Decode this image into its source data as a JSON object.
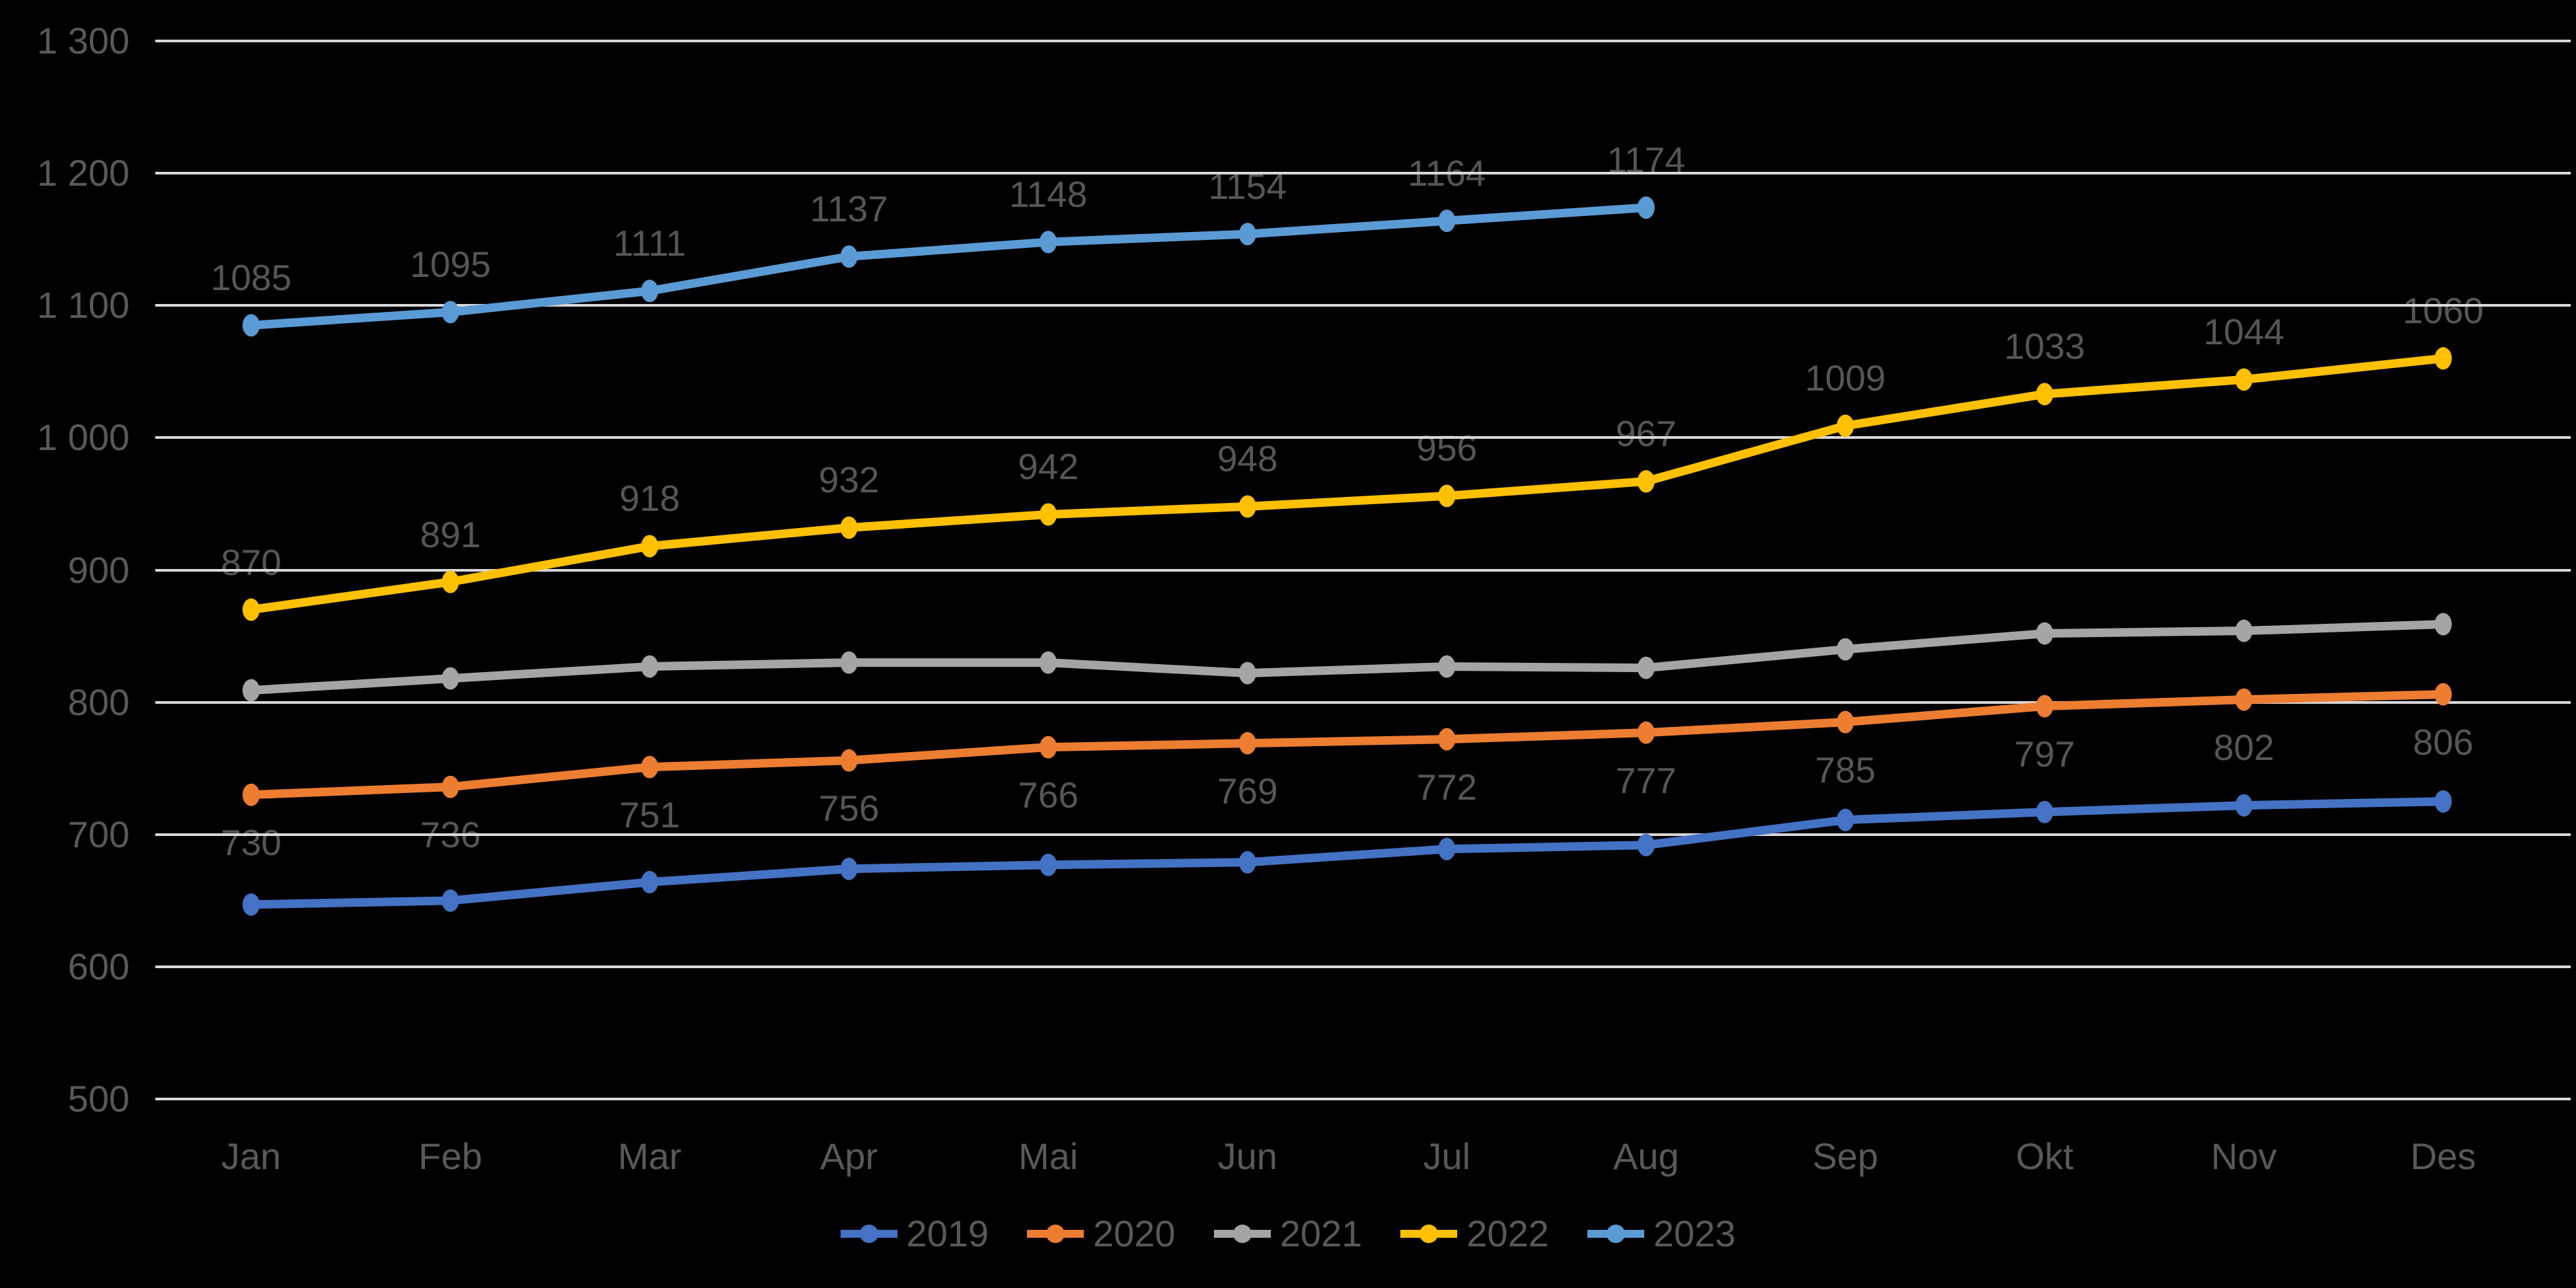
{
  "chart_data": {
    "type": "line",
    "title": "",
    "categories": [
      "Jan",
      "Feb",
      "Mar",
      "Apr",
      "Mai",
      "Jun",
      "Jul",
      "Aug",
      "Sep",
      "Okt",
      "Nov",
      "Des"
    ],
    "y_axis": {
      "min": 500,
      "max": 1300,
      "step": 100,
      "ticks": [
        {
          "value": 1300,
          "label": "1 300"
        },
        {
          "value": 1200,
          "label": "1 200"
        },
        {
          "value": 1100,
          "label": "1 100"
        },
        {
          "value": 1000,
          "label": "1 000"
        },
        {
          "value": 900,
          "label": "900"
        },
        {
          "value": 800,
          "label": "800"
        },
        {
          "value": 700,
          "label": "700"
        },
        {
          "value": 600,
          "label": "600"
        },
        {
          "value": 500,
          "label": "500"
        }
      ]
    },
    "grid": true,
    "legend_position": "bottom",
    "series": [
      {
        "name": "2019",
        "color": "#4472C4",
        "data_labels": "none",
        "values": [
          647,
          650,
          664,
          674,
          677,
          679,
          689,
          692,
          711,
          717,
          722,
          725
        ]
      },
      {
        "name": "2020",
        "color": "#ED7D31",
        "data_labels": "below",
        "values": [
          730,
          736,
          751,
          756,
          766,
          769,
          772,
          777,
          785,
          797,
          802,
          806
        ]
      },
      {
        "name": "2021",
        "color": "#A5A5A5",
        "data_labels": "none",
        "values": [
          809,
          818,
          827,
          830,
          830,
          822,
          827,
          826,
          840,
          852,
          854,
          859
        ]
      },
      {
        "name": "2022",
        "color": "#FFC000",
        "data_labels": "above",
        "values": [
          870,
          891,
          918,
          932,
          942,
          948,
          956,
          967,
          1009,
          1033,
          1044,
          1060
        ]
      },
      {
        "name": "2023",
        "color": "#5B9BD5",
        "data_labels": "above",
        "values": [
          1085,
          1095,
          1111,
          1137,
          1148,
          1154,
          1164,
          1174,
          null,
          null,
          null,
          null
        ]
      }
    ],
    "colors": {
      "background": "#000000",
      "gridline": "#D9D9D9",
      "axis_text": "#595959",
      "data_label_text": "#565656",
      "legend_text": "#595959"
    }
  }
}
